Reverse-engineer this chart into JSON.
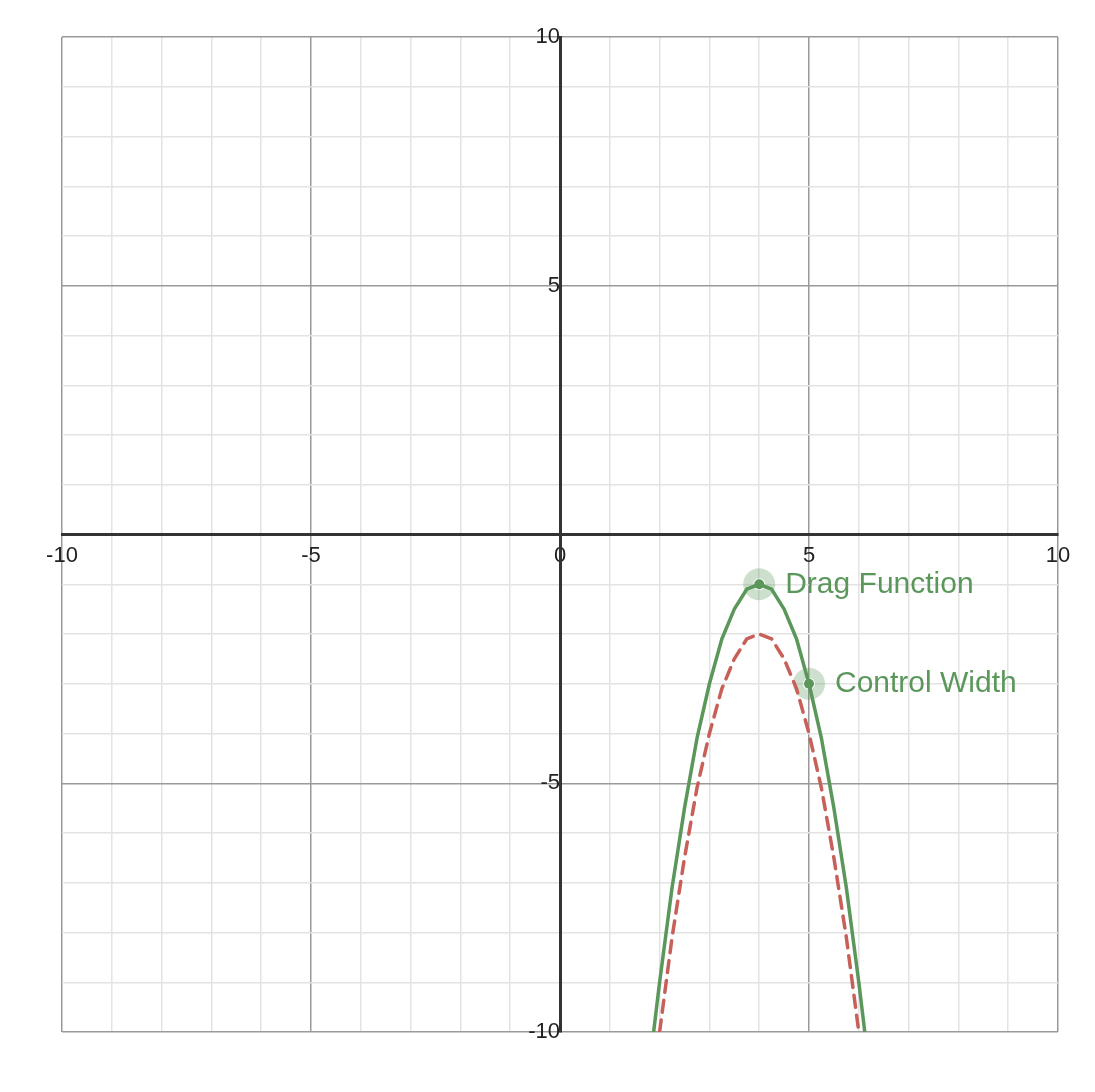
{
  "chart_data": {
    "type": "line",
    "xlim": [
      -10,
      10
    ],
    "ylim": [
      -10,
      10
    ],
    "xticks": [
      -10,
      {
        "value": -9,
        "label": null
      },
      {
        "value": -8,
        "label": null
      },
      {
        "value": -7,
        "label": null
      },
      {
        "value": -6,
        "label": null
      },
      -5,
      {
        "value": -4,
        "label": null
      },
      {
        "value": -3,
        "label": null
      },
      {
        "value": -2,
        "label": null
      },
      {
        "value": -1,
        "label": null
      },
      0,
      {
        "value": 1,
        "label": null
      },
      {
        "value": 2,
        "label": null
      },
      {
        "value": 3,
        "label": null
      },
      {
        "value": 4,
        "label": null
      },
      5,
      {
        "value": 6,
        "label": null
      },
      {
        "value": 7,
        "label": null
      },
      {
        "value": 8,
        "label": null
      },
      {
        "value": 9,
        "label": null
      },
      10
    ],
    "yticks": [
      -10,
      {
        "value": -9,
        "label": null
      },
      {
        "value": -8,
        "label": null
      },
      {
        "value": -7,
        "label": null
      },
      {
        "value": -6,
        "label": null
      },
      -5,
      {
        "value": -4,
        "label": null
      },
      {
        "value": -3,
        "label": null
      },
      {
        "value": -2,
        "label": null
      },
      {
        "value": -1,
        "label": null
      },
      {
        "value": 0,
        "label": null
      },
      {
        "value": 1,
        "label": null
      },
      {
        "value": 2,
        "label": null
      },
      {
        "value": 3,
        "label": null
      },
      {
        "value": 4,
        "label": null
      },
      5,
      {
        "value": 6,
        "label": null
      },
      {
        "value": 7,
        "label": null
      },
      {
        "value": 8,
        "label": null
      },
      {
        "value": 9,
        "label": null
      },
      10
    ],
    "grid": true,
    "legend": false,
    "series": [
      {
        "type": "line",
        "color": "#5b975b",
        "line_style": "solid",
        "marker": "none",
        "x": [
          1.88,
          2,
          2.25,
          2.5,
          2.75,
          3,
          3.25,
          3.5,
          3.75,
          4,
          4.25,
          4.5,
          4.75,
          5,
          5.25,
          5.5,
          5.75,
          6,
          6.12
        ],
        "values": [
          -10,
          -9,
          -7.1,
          -5.5,
          -4.1,
          -3,
          -2.1,
          -1.5,
          -1.1,
          -1,
          -1.1,
          -1.5,
          -2.1,
          -3,
          -4.1,
          -5.5,
          -7.1,
          -9,
          -10
        ]
      },
      {
        "type": "line",
        "color": "#c8605a",
        "line_style": "dashed",
        "marker": "none",
        "x": [
          2,
          2.25,
          2.5,
          2.75,
          3,
          3.25,
          3.5,
          3.75,
          4,
          4.25,
          4.5,
          4.75,
          5,
          5.25,
          5.5,
          5.75,
          6
        ],
        "values": [
          -10,
          -8.1,
          -6.5,
          -5.1,
          -4,
          -3.1,
          -2.5,
          -2.1,
          -2,
          -2.1,
          -2.5,
          -3.1,
          -4,
          -5.1,
          -6.5,
          -8.1,
          -10
        ]
      },
      {
        "type": "scatter",
        "color": "#5b975b",
        "marker": "circle",
        "x": [
          4,
          5
        ],
        "values": [
          -1,
          -3
        ]
      }
    ],
    "annotations": [
      {
        "text": "Drag Function",
        "x": 4,
        "y": -1
      },
      {
        "text": "Control Width",
        "x": 5,
        "y": -3
      }
    ]
  }
}
